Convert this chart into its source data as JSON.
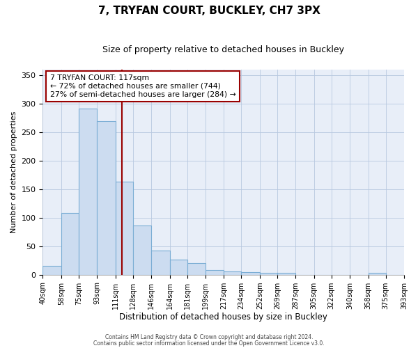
{
  "title": "7, TRYFAN COURT, BUCKLEY, CH7 3PX",
  "subtitle": "Size of property relative to detached houses in Buckley",
  "xlabel": "Distribution of detached houses by size in Buckley",
  "ylabel": "Number of detached properties",
  "bar_color": "#ccdcf0",
  "bar_edge_color": "#7aadd4",
  "bg_color": "#e8eef8",
  "grid_color": "#b8c8e0",
  "vline_color": "#990000",
  "vline_x": 117,
  "annotation_line1": "7 TRYFAN COURT: 117sqm",
  "annotation_line2": "← 72% of detached houses are smaller (744)",
  "annotation_line3": "27% of semi-detached houses are larger (284) →",
  "annotation_box_color": "#ffffff",
  "annotation_box_edge": "#990000",
  "footer1": "Contains HM Land Registry data © Crown copyright and database right 2024.",
  "footer2": "Contains public sector information licensed under the Open Government Licence v3.0.",
  "bins": [
    40,
    58,
    75,
    93,
    111,
    128,
    146,
    164,
    181,
    199,
    217,
    234,
    252,
    269,
    287,
    305,
    322,
    340,
    358,
    375,
    393
  ],
  "values": [
    15,
    108,
    291,
    270,
    163,
    86,
    42,
    27,
    20,
    8,
    6,
    5,
    3,
    3,
    0,
    0,
    0,
    0,
    3,
    0
  ],
  "ylim": [
    0,
    360
  ],
  "yticks": [
    0,
    50,
    100,
    150,
    200,
    250,
    300,
    350
  ]
}
